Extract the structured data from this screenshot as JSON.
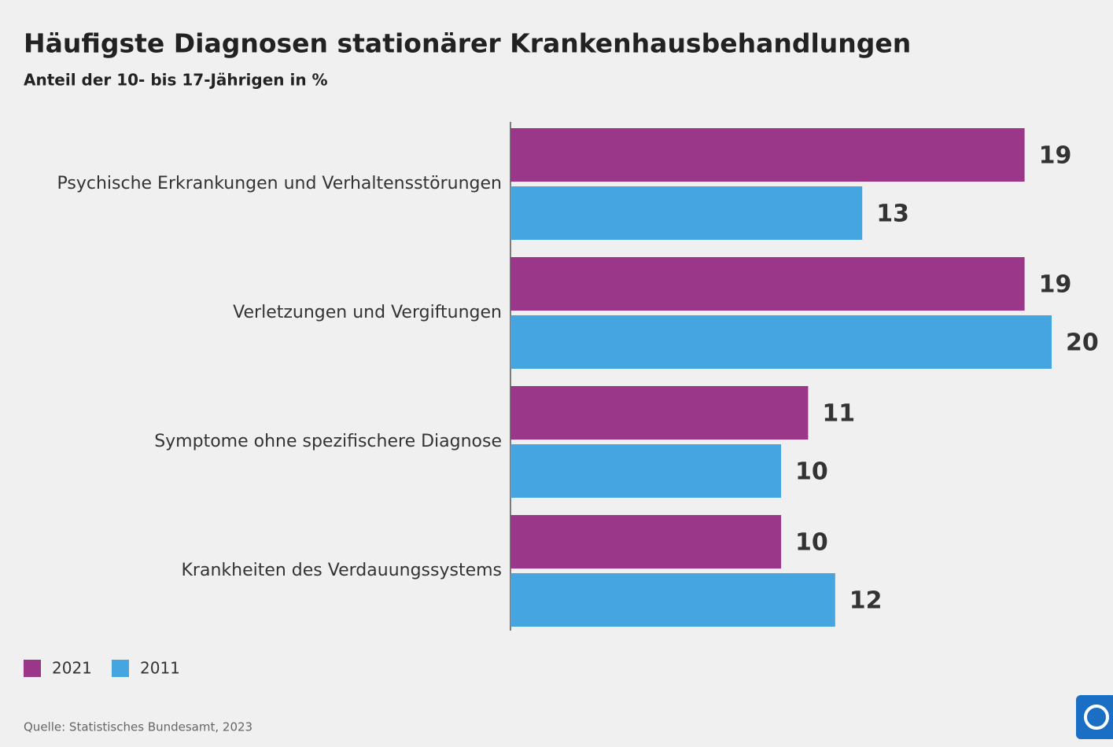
{
  "chart_data": {
    "type": "hbar",
    "title": "Häufigste Diagnosen stationärer Krankenhausbehandlungen",
    "subtitle": "Anteil der 10- bis 17-Jährigen in %",
    "categories": [
      "Psychische Erkrankungen und Verhaltensstörungen",
      "Verletzungen und Vergiftungen",
      "Symptome ohne spezifischere Diagnose",
      "Krankheiten des Verdauungssystems"
    ],
    "series": [
      {
        "name": "2021",
        "color": "#9b3788",
        "values": [
          19,
          19,
          11,
          10
        ]
      },
      {
        "name": "2011",
        "color": "#45a5e0",
        "values": [
          13,
          20,
          10,
          12
        ]
      }
    ],
    "xlim": [
      0,
      20
    ],
    "source": "Quelle: Statistisches Bundesamt, 2023"
  }
}
